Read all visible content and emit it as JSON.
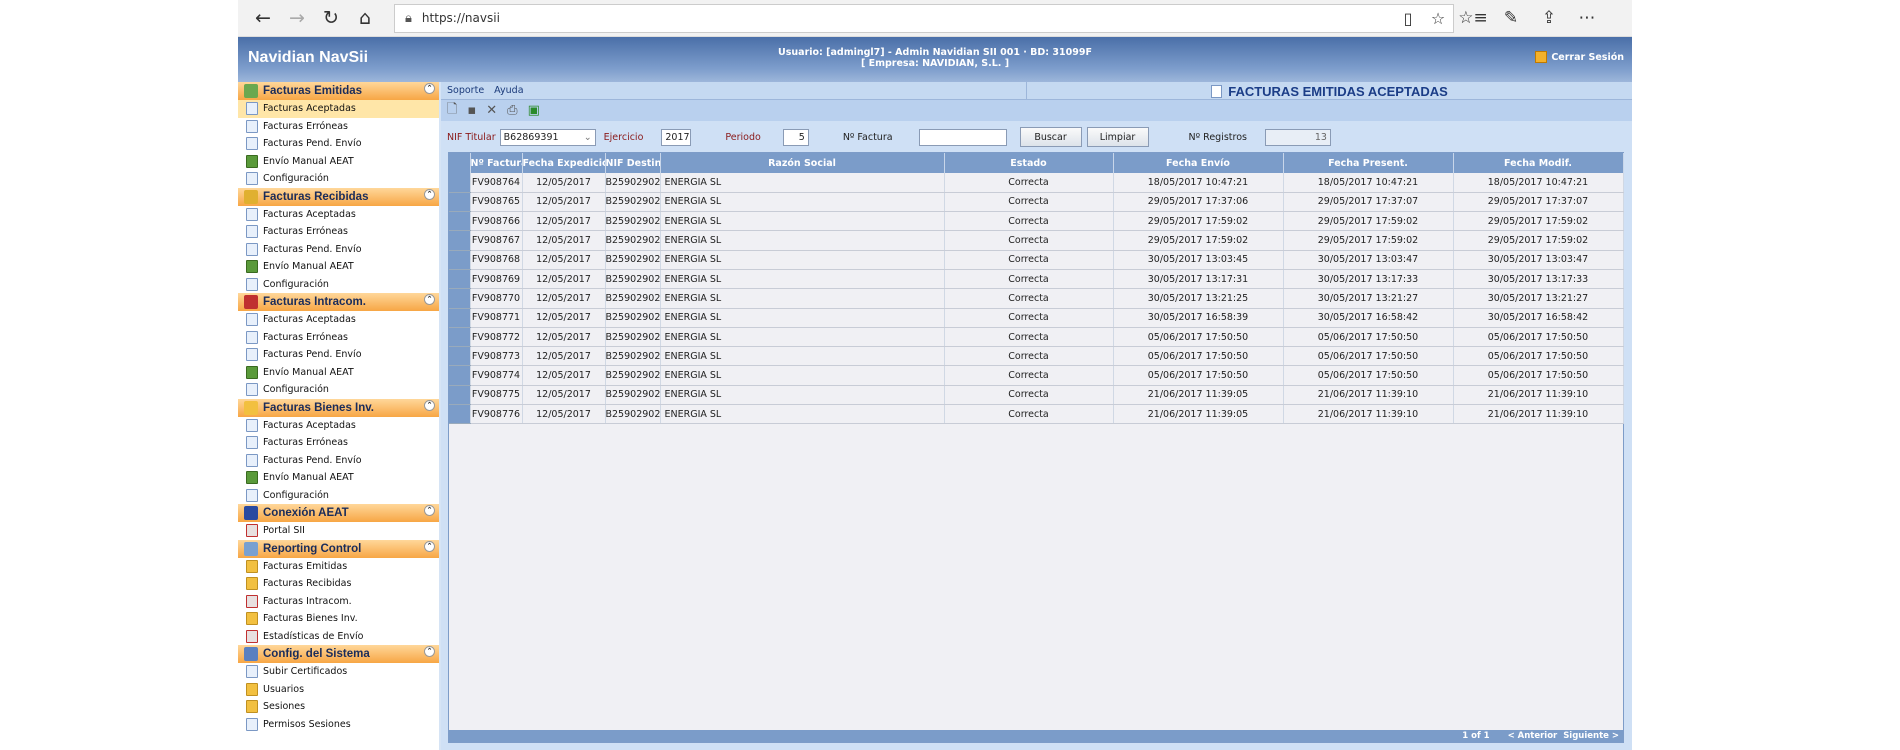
{
  "browser": {
    "url": "https://navsii",
    "icons": [
      "back-icon",
      "forward-icon",
      "refresh-icon",
      "home-icon",
      "lock-icon",
      "reading-view-icon",
      "favorite-star-icon",
      "favorites-list-icon",
      "pen-icon",
      "share-icon",
      "more-icon"
    ]
  },
  "header": {
    "brand": "Navidian NavSii",
    "user_line1": "Usuario: [admingl7] - Admin Navidian SII 001 · BD: 31099F",
    "user_line2": "[ Empresa: NAVIDIAN, S.L. ]",
    "logout": "Cerrar Sesión"
  },
  "sidebar": [
    {
      "title": "Facturas Emitidas",
      "color": "#6aa84f",
      "items": [
        {
          "label": "Facturas Aceptadas",
          "icon": "",
          "selected": true
        },
        {
          "label": "Facturas Erróneas",
          "icon": ""
        },
        {
          "label": "Facturas Pend. Envío",
          "icon": ""
        },
        {
          "label": "Envío Manual AEAT",
          "icon": "g"
        },
        {
          "label": "Configuración",
          "icon": ""
        }
      ]
    },
    {
      "title": "Facturas Recibidas",
      "color": "#e0b030",
      "items": [
        {
          "label": "Facturas Aceptadas",
          "icon": ""
        },
        {
          "label": "Facturas Erróneas",
          "icon": ""
        },
        {
          "label": "Facturas Pend. Envío",
          "icon": ""
        },
        {
          "label": "Envío Manual AEAT",
          "icon": "g"
        },
        {
          "label": "Configuración",
          "icon": ""
        }
      ]
    },
    {
      "title": "Facturas Intracom.",
      "color": "#c03030",
      "items": [
        {
          "label": "Facturas Aceptadas",
          "icon": ""
        },
        {
          "label": "Facturas Erróneas",
          "icon": ""
        },
        {
          "label": "Facturas Pend. Envío",
          "icon": ""
        },
        {
          "label": "Envío Manual AEAT",
          "icon": "g"
        },
        {
          "label": "Configuración",
          "icon": ""
        }
      ]
    },
    {
      "title": "Facturas Bienes Inv.",
      "color": "#f2c040",
      "items": [
        {
          "label": "Facturas Aceptadas",
          "icon": ""
        },
        {
          "label": "Facturas Erróneas",
          "icon": ""
        },
        {
          "label": "Facturas Pend. Envío",
          "icon": ""
        },
        {
          "label": "Envío Manual AEAT",
          "icon": "g"
        },
        {
          "label": "Configuración",
          "icon": ""
        }
      ]
    },
    {
      "title": "Conexión AEAT",
      "color": "#2a4aa0",
      "items": [
        {
          "label": "Portal SII",
          "icon": "r"
        }
      ]
    },
    {
      "title": "Reporting Control",
      "color": "#7aa0d0",
      "items": [
        {
          "label": "Facturas Emitidas",
          "icon": "y"
        },
        {
          "label": "Facturas Recibidas",
          "icon": "y"
        },
        {
          "label": "Facturas Intracom.",
          "icon": "r"
        },
        {
          "label": "Facturas Bienes Inv.",
          "icon": "y"
        },
        {
          "label": "Estadísticas de Envío",
          "icon": "r"
        }
      ]
    },
    {
      "title": "Config. del Sistema",
      "color": "#5a80c0",
      "items": [
        {
          "label": "Subir Certificados",
          "icon": ""
        },
        {
          "label": "Usuarios",
          "icon": "y"
        },
        {
          "label": "Sesiones",
          "icon": "y"
        },
        {
          "label": "Permisos Sesiones",
          "icon": ""
        }
      ]
    }
  ],
  "menu": {
    "soporte": "Soporte",
    "ayuda": "Ayuda",
    "page_title": "FACTURAS EMITIDAS ACEPTADAS"
  },
  "toolbar": {
    "icons": [
      "new-icon",
      "save-icon",
      "delete-icon",
      "print-icon",
      "export-icon"
    ]
  },
  "filters": {
    "nif_label": "NIF Titular",
    "nif_value": "B62869391",
    "ejercicio_label": "Ejercicio",
    "ejercicio_value": "2017",
    "periodo_label": "Periodo",
    "periodo_value": "5",
    "nfactura_label": "Nº Factura",
    "nfactura_value": "",
    "buscar": "Buscar",
    "limpiar": "Limpiar",
    "nreg_label": "Nº Registros",
    "nreg_value": "13"
  },
  "table": {
    "columns": [
      "Nº Factura",
      "Fecha Expedición",
      "NIF Destin.",
      "Razón Social",
      "Estado",
      "Fecha Envío",
      "Fecha Present.",
      "Fecha Modif."
    ],
    "rows": [
      [
        "FV908764",
        "12/05/2017",
        "B25902902",
        "ENERGIA SL",
        "Correcta",
        "18/05/2017 10:47:21",
        "18/05/2017 10:47:21",
        "18/05/2017 10:47:21"
      ],
      [
        "FV908765",
        "12/05/2017",
        "B25902902",
        "ENERGIA SL",
        "Correcta",
        "29/05/2017 17:37:06",
        "29/05/2017 17:37:07",
        "29/05/2017 17:37:07"
      ],
      [
        "FV908766",
        "12/05/2017",
        "B25902902",
        "ENERGIA SL",
        "Correcta",
        "29/05/2017 17:59:02",
        "29/05/2017 17:59:02",
        "29/05/2017 17:59:02"
      ],
      [
        "FV908767",
        "12/05/2017",
        "B25902902",
        "ENERGIA SL",
        "Correcta",
        "29/05/2017 17:59:02",
        "29/05/2017 17:59:02",
        "29/05/2017 17:59:02"
      ],
      [
        "FV908768",
        "12/05/2017",
        "B25902902",
        "ENERGIA SL",
        "Correcta",
        "30/05/2017 13:03:45",
        "30/05/2017 13:03:47",
        "30/05/2017 13:03:47"
      ],
      [
        "FV908769",
        "12/05/2017",
        "B25902902",
        "ENERGIA SL",
        "Correcta",
        "30/05/2017 13:17:31",
        "30/05/2017 13:17:33",
        "30/05/2017 13:17:33"
      ],
      [
        "FV908770",
        "12/05/2017",
        "B25902902",
        "ENERGIA SL",
        "Correcta",
        "30/05/2017 13:21:25",
        "30/05/2017 13:21:27",
        "30/05/2017 13:21:27"
      ],
      [
        "FV908771",
        "12/05/2017",
        "B25902902",
        "ENERGIA SL",
        "Correcta",
        "30/05/2017 16:58:39",
        "30/05/2017 16:58:42",
        "30/05/2017 16:58:42"
      ],
      [
        "FV908772",
        "12/05/2017",
        "B25902902",
        "ENERGIA SL",
        "Correcta",
        "05/06/2017 17:50:50",
        "05/06/2017 17:50:50",
        "05/06/2017 17:50:50"
      ],
      [
        "FV908773",
        "12/05/2017",
        "B25902902",
        "ENERGIA SL",
        "Correcta",
        "05/06/2017 17:50:50",
        "05/06/2017 17:50:50",
        "05/06/2017 17:50:50"
      ],
      [
        "FV908774",
        "12/05/2017",
        "B25902902",
        "ENERGIA SL",
        "Correcta",
        "05/06/2017 17:50:50",
        "05/06/2017 17:50:50",
        "05/06/2017 17:50:50"
      ],
      [
        "FV908775",
        "12/05/2017",
        "B25902902",
        "ENERGIA SL",
        "Correcta",
        "21/06/2017 11:39:05",
        "21/06/2017 11:39:10",
        "21/06/2017 11:39:10"
      ],
      [
        "FV908776",
        "12/05/2017",
        "B25902902",
        "ENERGIA SL",
        "Correcta",
        "21/06/2017 11:39:05",
        "21/06/2017 11:39:10",
        "21/06/2017 11:39:10"
      ]
    ]
  },
  "pager": {
    "page": "1 of 1",
    "prev": "< Anterior",
    "next": "Siguiente >"
  }
}
